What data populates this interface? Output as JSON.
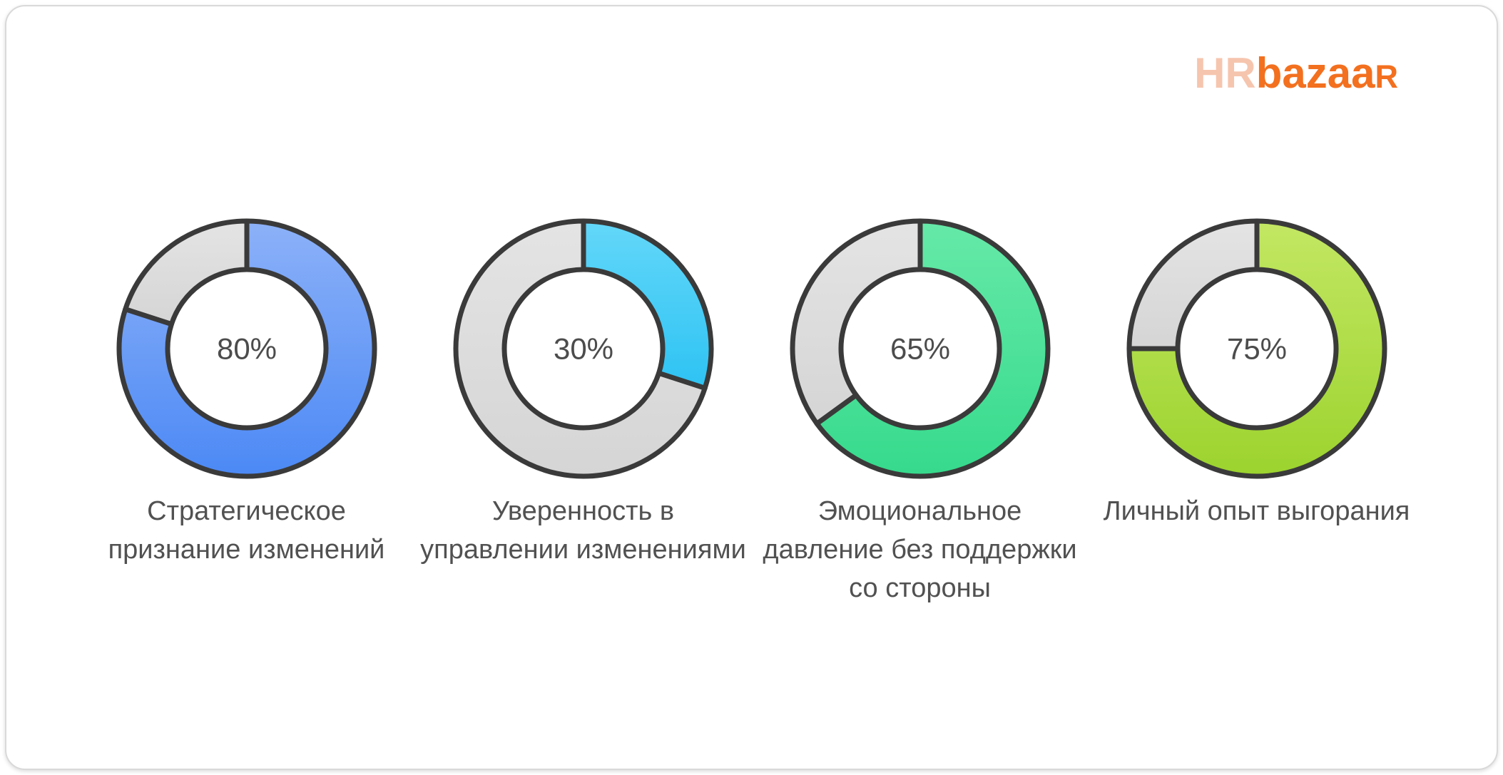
{
  "page": {
    "background": "#ffffff",
    "card_border_color": "#d9d9d9"
  },
  "logo": {
    "hr": "HR",
    "bazaar": "bazaa",
    "r": "R",
    "hr_color": "#f6c5ae",
    "bazaar_color": "#f3701f"
  },
  "chart_data": {
    "type": "pie",
    "variant": "donut",
    "start_angle": "12 o'clock",
    "direction": "clockwise",
    "outline_color": "#3a3a3a",
    "remainder_color_top": "#e4e4e4",
    "remainder_color_bottom": "#d5d5d5",
    "center_text_color": "#4c4c4c",
    "caption_color": "#515151",
    "charts": [
      {
        "label": "Стратегическое признание изменений",
        "value": 80,
        "display": "80%",
        "color_top": "#8cb1f8",
        "color_bottom": "#4c89f5"
      },
      {
        "label": "Уверенность в управлении изменениями",
        "value": 30,
        "display": "30%",
        "color_top": "#63d7f9",
        "color_bottom": "#2ec3f3"
      },
      {
        "label": "Эмоциональное давление без поддержки со стороны",
        "value": 65,
        "display": "65%",
        "color_top": "#66e9a8",
        "color_bottom": "#36da8c"
      },
      {
        "label": "Личный опыт выгорания",
        "value": 75,
        "display": "75%",
        "color_top": "#c3e763",
        "color_bottom": "#9cd32e"
      }
    ]
  }
}
